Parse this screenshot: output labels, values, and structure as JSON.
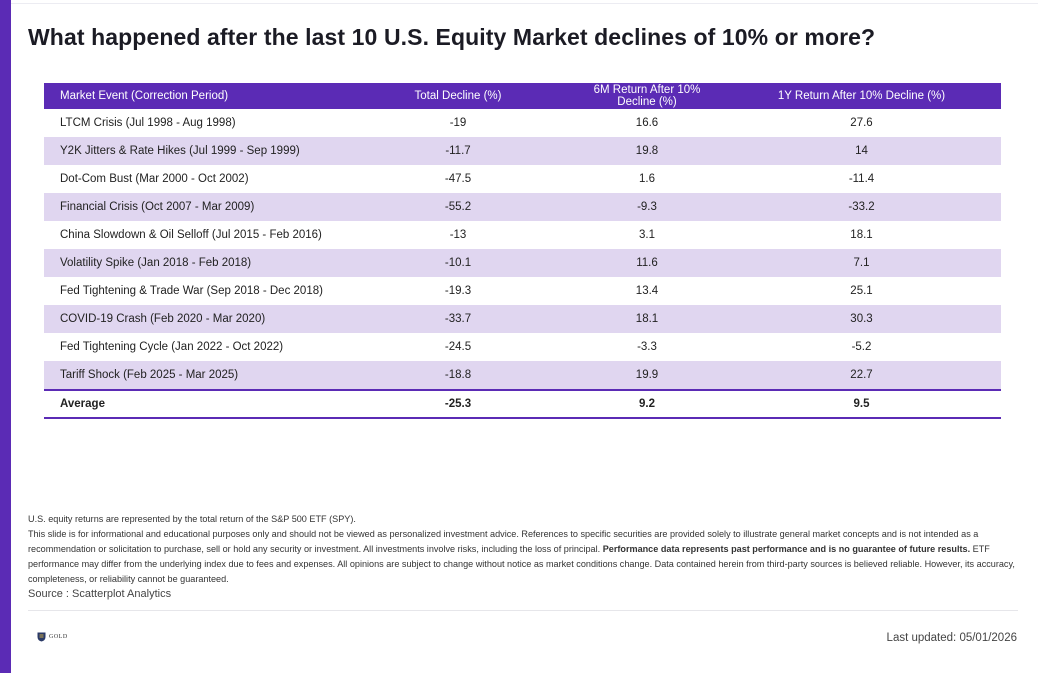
{
  "title": "What happened after the last 10 U.S. Equity Market declines of 10% or more?",
  "colors": {
    "accent": "#5b2bb5",
    "row_alt": "#e0d6f0"
  },
  "table": {
    "headers": [
      "Market Event (Correction Period)",
      "Total Decline (%)",
      "6M Return After 10% Decline (%)",
      "1Y Return After 10% Decline (%)"
    ],
    "rows": [
      [
        "LTCM Crisis (Jul 1998 - Aug 1998)",
        "-19",
        "16.6",
        "27.6"
      ],
      [
        "Y2K Jitters & Rate Hikes (Jul 1999 - Sep 1999)",
        "-11.7",
        "19.8",
        "14"
      ],
      [
        "Dot-Com Bust (Mar 2000 - Oct 2002)",
        "-47.5",
        "1.6",
        "-11.4"
      ],
      [
        "Financial Crisis (Oct 2007 - Mar 2009)",
        "-55.2",
        "-9.3",
        "-33.2"
      ],
      [
        "China Slowdown & Oil Selloff (Jul 2015 - Feb 2016)",
        "-13",
        "3.1",
        "18.1"
      ],
      [
        "Volatility Spike (Jan 2018 - Feb 2018)",
        "-10.1",
        "11.6",
        "7.1"
      ],
      [
        "Fed Tightening & Trade War (Sep 2018 - Dec 2018)",
        "-19.3",
        "13.4",
        "25.1"
      ],
      [
        "COVID-19 Crash (Feb 2020 - Mar 2020)",
        "-33.7",
        "18.1",
        "30.3"
      ],
      [
        "Fed Tightening Cycle (Jan 2022 - Oct 2022)",
        "-24.5",
        "-3.3",
        "-5.2"
      ],
      [
        "Tariff Shock (Feb 2025 - Mar 2025)",
        "-18.8",
        "19.9",
        "22.7"
      ]
    ],
    "average": [
      "Average",
      "-25.3",
      "9.2",
      "9.5"
    ]
  },
  "notes": {
    "line1": "U.S. equity returns are represented by the total return of the S&P 500 ETF (SPY).",
    "disclaimer_a": "This slide is for informational and educational purposes only and should not be viewed as personalized investment advice. References to specific securities are provided solely to illustrate general market concepts and is not intended as a recommendation or solicitation to purchase, sell or hold any security or investment. All investments involve risks, including the loss of principal.",
    "disclaimer_bold": "Performance data represents past performance and is no guarantee of future results.",
    "disclaimer_b": "ETF performance may differ from the underlying index due to fees and expenses. All opinions are subject to change without notice as market conditions change. Data contained herein from third-party sources is believed reliable. However, its accuracy, completeness, or reliability cannot be guaranteed."
  },
  "source": "Source : Scatterplot Analytics",
  "logo_text": "GOLD",
  "last_updated": "Last updated: 05/01/2026"
}
